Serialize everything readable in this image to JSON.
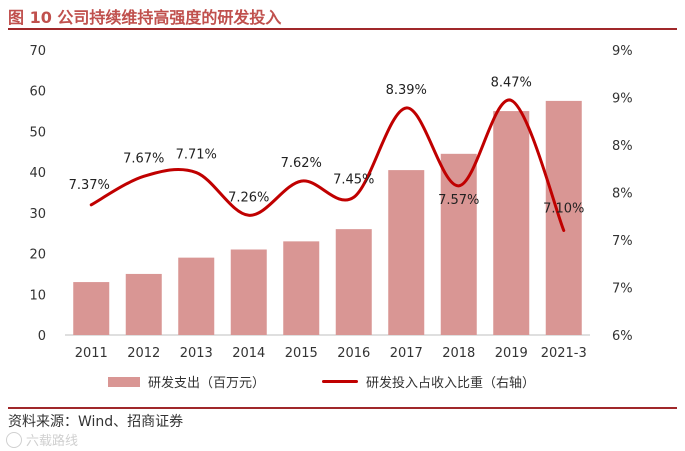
{
  "header": {
    "title": "图 10  公司持续维持高强度的研发投入"
  },
  "footer": {
    "source": "资料来源：Wind、招商证券",
    "watermark": "六载路线"
  },
  "colors": {
    "bar": "#d99694",
    "line": "#c00000",
    "accent": "#a0282a"
  },
  "chart_data": {
    "type": "bar+line",
    "categories": [
      "2011",
      "2012",
      "2013",
      "2014",
      "2015",
      "2016",
      "2017",
      "2018",
      "2019",
      "2021-3"
    ],
    "series": [
      {
        "name": "研发支出（百万元）",
        "type": "bar",
        "axis": "left",
        "values": [
          13,
          15,
          19,
          21,
          23,
          26,
          40.5,
          44.5,
          55,
          57.5
        ]
      },
      {
        "name": "研发投入占收入比重（右轴）",
        "type": "line",
        "axis": "right",
        "values": [
          7.37,
          7.67,
          7.71,
          7.26,
          7.62,
          7.45,
          8.39,
          7.57,
          8.47,
          7.1
        ],
        "labels": [
          "7.37%",
          "7.67%",
          "7.71%",
          "7.26%",
          "7.62%",
          "7.45%",
          "8.39%",
          "7.57%",
          "8.47%",
          "7.10%"
        ]
      }
    ],
    "left_axis": {
      "min": 0,
      "max": 70,
      "ticks": [
        "0",
        "10",
        "20",
        "30",
        "40",
        "50",
        "60",
        "70"
      ]
    },
    "right_axis": {
      "min": 6,
      "max": 9,
      "ticks": [
        "6%",
        "7%",
        "7%",
        "8%",
        "8%",
        "9%",
        "9%"
      ]
    },
    "legend": {
      "position": "bottom"
    }
  }
}
